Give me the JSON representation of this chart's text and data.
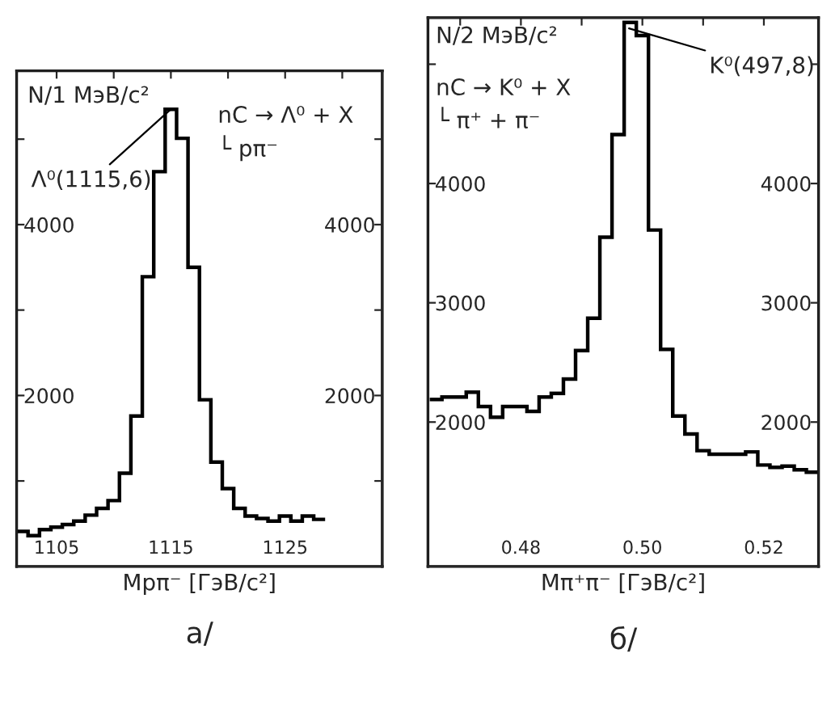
{
  "chart_data": [
    {
      "type": "histogram",
      "title": "а/",
      "xlabel": "Mpπ⁻ [ГэВ/c²]",
      "ylabel": "N/1 МэВ/c²",
      "color": "#000000",
      "annotations": [
        {
          "text": "Λ⁰(1115,6)",
          "x": 1115,
          "y": 5350
        },
        "nC → Λ⁰ + X",
        "└ pπ⁻"
      ],
      "bins": [
        1101.5,
        1102.5,
        1103.5,
        1104.5,
        1105.5,
        1106.5,
        1107.5,
        1108.5,
        1109.5,
        1110.5,
        1111.5,
        1112.5,
        1113.5,
        1114.5,
        1115.5,
        1116.5,
        1117.5,
        1118.5,
        1119.5,
        1120.5,
        1121.5,
        1122.5,
        1123.5,
        1124.5,
        1125.5,
        1126.5,
        1127.5,
        1128.5
      ],
      "values": [
        410,
        360,
        430,
        460,
        490,
        530,
        600,
        680,
        770,
        1090,
        1760,
        3390,
        4620,
        5350,
        5010,
        3500,
        1950,
        1220,
        910,
        680,
        590,
        560,
        530,
        590,
        530,
        590,
        550
      ],
      "xlim": [
        1101.5,
        1133.5
      ],
      "xticks": [
        1105,
        {
          "value": 1110,
          "label": null
        },
        1115,
        {
          "value": 1120,
          "label": null
        },
        1125,
        {
          "value": 1130,
          "label": null
        }
      ],
      "ylim": [
        0,
        5800
      ],
      "yticks": [
        {
          "value": 1000,
          "label": null
        },
        2000,
        {
          "value": 3000,
          "label": null
        },
        4000,
        {
          "value": 5000,
          "label": null
        }
      ],
      "y2lim": [
        0,
        5800
      ],
      "y2ticks": [
        {
          "value": 1000,
          "label": null
        },
        2000,
        {
          "value": 3000,
          "label": null
        },
        4000,
        {
          "value": 5000,
          "label": null
        }
      ],
      "grid": false,
      "legend": false
    },
    {
      "type": "histogram",
      "title": "б/",
      "xlabel": "Mπ⁺π⁻ [ГэВ/c²]",
      "ylabel": "N/2 МэВ/c²",
      "color": "#000000",
      "annotations": [
        {
          "text": "K⁰(497,8)",
          "x": 0.4978,
          "y": 5300
        },
        "nC → K⁰ + X",
        "└ π⁺ + π⁻"
      ],
      "bins": [
        0.465,
        0.467,
        0.469,
        0.471,
        0.473,
        0.475,
        0.477,
        0.479,
        0.481,
        0.483,
        0.485,
        0.487,
        0.489,
        0.491,
        0.493,
        0.495,
        0.497,
        0.499,
        0.501,
        0.503,
        0.505,
        0.507,
        0.509,
        0.511,
        0.513,
        0.515,
        0.517,
        0.519,
        0.521,
        0.523,
        0.525,
        0.527,
        0.529
      ],
      "values": [
        2190,
        2210,
        2210,
        2250,
        2130,
        2040,
        2130,
        2130,
        2090,
        2210,
        2240,
        2360,
        2600,
        2870,
        3550,
        4410,
        5350,
        5240,
        3610,
        2610,
        2050,
        1900,
        1760,
        1730,
        1730,
        1730,
        1750,
        1640,
        1620,
        1630,
        1600,
        1580
      ],
      "xlim": [
        0.4647,
        0.529
      ],
      "xticks": [
        {
          "value": 0.47,
          "label": null
        },
        {
          "value": 0.48,
          "label": "0.48"
        },
        {
          "value": 0.49,
          "label": null
        },
        {
          "value": 0.5,
          "label": "0.50"
        },
        {
          "value": 0.51,
          "label": null
        },
        {
          "value": 0.52,
          "label": "0.52"
        }
      ],
      "ylim": [
        790,
        5390
      ],
      "yticks": [
        2000,
        3000,
        4000,
        {
          "value": 5000,
          "label": null
        }
      ],
      "y2lim": [
        790,
        5390
      ],
      "y2ticks": [
        2000,
        3000,
        4000,
        {
          "value": 5000,
          "label": null
        }
      ],
      "grid": false,
      "legend": false
    }
  ]
}
